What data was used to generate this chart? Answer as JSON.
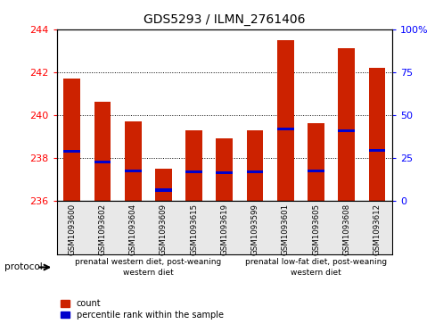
{
  "title": "GDS5293 / ILMN_2761406",
  "samples": [
    "GSM1093600",
    "GSM1093602",
    "GSM1093604",
    "GSM1093609",
    "GSM1093615",
    "GSM1093619",
    "GSM1093599",
    "GSM1093601",
    "GSM1093605",
    "GSM1093608",
    "GSM1093612"
  ],
  "bar_tops": [
    241.7,
    240.6,
    239.7,
    237.5,
    239.3,
    238.9,
    239.3,
    243.5,
    239.6,
    243.1,
    242.2
  ],
  "bar_base": 236.0,
  "blue_values": [
    238.3,
    237.8,
    237.4,
    236.5,
    237.35,
    237.3,
    237.35,
    239.35,
    237.4,
    239.25,
    238.35
  ],
  "ylim_left": [
    236,
    244
  ],
  "ylim_right": [
    0,
    100
  ],
  "yticks_left": [
    236,
    238,
    240,
    242,
    244
  ],
  "yticks_right": [
    0,
    25,
    50,
    75,
    100
  ],
  "yticklabels_right": [
    "0",
    "25",
    "50",
    "75",
    "100%"
  ],
  "bar_color": "#cc2200",
  "blue_color": "#0000cc",
  "group1_label": "prenatal western diet, post-weaning\nwestern diet",
  "group2_label": "prenatal low-fat diet, post-weaning\nwestern diet",
  "group1_count": 6,
  "group2_count": 5,
  "protocol_label": "protocol",
  "legend_count_label": "count",
  "legend_pct_label": "percentile rank within the sample",
  "bg_color": "#e8e8e8",
  "group1_color": "#ccffcc",
  "group2_color": "#88ee88",
  "bar_width": 0.55
}
